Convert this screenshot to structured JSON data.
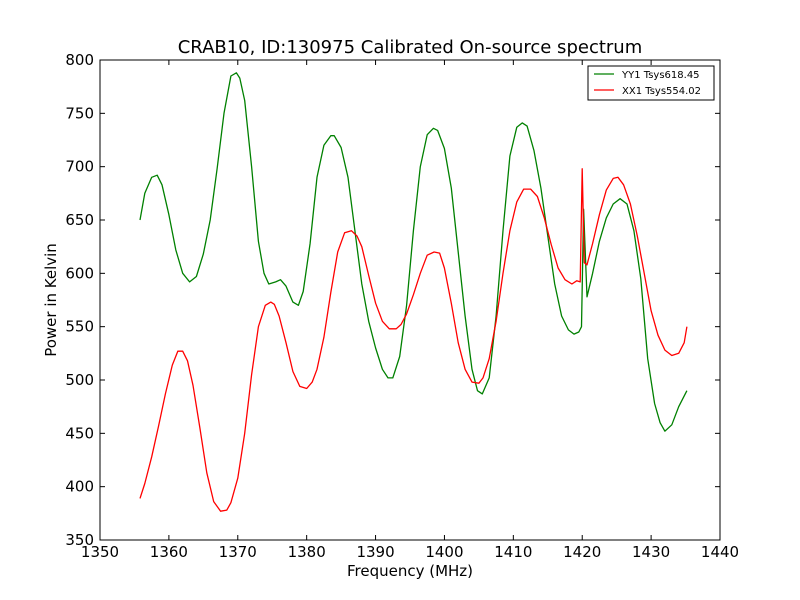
{
  "chart_data": {
    "type": "line",
    "title": "CRAB10, ID:130975 Calibrated On-source spectrum",
    "xlabel": "Frequency (MHz)",
    "ylabel": "Power in Kelvin",
    "xlim": [
      1350,
      1440
    ],
    "ylim": [
      350,
      800
    ],
    "xticks": [
      1350,
      1360,
      1370,
      1380,
      1390,
      1400,
      1410,
      1420,
      1430,
      1440
    ],
    "yticks": [
      350,
      400,
      450,
      500,
      550,
      600,
      650,
      700,
      750,
      800
    ],
    "grid": false,
    "legend_position": "top-right",
    "series": [
      {
        "name": "YY1 Tsys618.45",
        "color": "#008000",
        "x": [
          1355.8,
          1356.5,
          1357.5,
          1358.3,
          1359.0,
          1360.0,
          1361.0,
          1362.0,
          1363.0,
          1364.0,
          1365.0,
          1366.0,
          1367.0,
          1368.0,
          1369.0,
          1369.8,
          1370.3,
          1371.0,
          1372.0,
          1373.0,
          1373.8,
          1374.5,
          1375.5,
          1376.2,
          1377.0,
          1378.0,
          1378.8,
          1379.5,
          1380.5,
          1381.5,
          1382.5,
          1383.5,
          1384.0,
          1385.0,
          1386.0,
          1387.0,
          1388.0,
          1389.0,
          1390.0,
          1391.0,
          1391.8,
          1392.5,
          1393.5,
          1394.5,
          1395.5,
          1396.5,
          1397.5,
          1398.4,
          1399.0,
          1400.0,
          1401.0,
          1402.0,
          1403.0,
          1404.0,
          1404.8,
          1405.5,
          1406.5,
          1407.5,
          1408.5,
          1409.5,
          1410.5,
          1411.3,
          1412.0,
          1413.0,
          1414.0,
          1415.0,
          1416.0,
          1417.0,
          1418.0,
          1418.8,
          1419.5,
          1419.9,
          1420.2,
          1420.7,
          1421.5,
          1422.5,
          1423.5,
          1424.5,
          1425.5,
          1426.5,
          1427.5,
          1428.5,
          1429.5,
          1430.5,
          1431.3,
          1432.0,
          1433.0,
          1434.0,
          1435.2
        ],
        "values": [
          650,
          675,
          690,
          692,
          683,
          655,
          622,
          600,
          592,
          597,
          618,
          650,
          698,
          750,
          785,
          788,
          783,
          762,
          700,
          630,
          600,
          590,
          592,
          594,
          588,
          573,
          570,
          583,
          628,
          690,
          720,
          729,
          729,
          718,
          690,
          640,
          590,
          555,
          530,
          510,
          502,
          502,
          522,
          570,
          640,
          700,
          730,
          736,
          734,
          717,
          680,
          620,
          560,
          510,
          490,
          487,
          502,
          560,
          640,
          710,
          737,
          741,
          738,
          715,
          680,
          635,
          590,
          560,
          547,
          543,
          545,
          550,
          660,
          578,
          600,
          630,
          652,
          665,
          670,
          665,
          640,
          595,
          520,
          478,
          460,
          452,
          458,
          475,
          490
        ]
      },
      {
        "name": "XX1 Tsys554.02",
        "color": "#ff0000",
        "x": [
          1355.8,
          1356.5,
          1357.5,
          1358.5,
          1359.5,
          1360.5,
          1361.3,
          1362.0,
          1362.7,
          1363.5,
          1364.5,
          1365.5,
          1366.5,
          1367.5,
          1368.4,
          1369.0,
          1370.0,
          1371.0,
          1372.0,
          1373.0,
          1374.0,
          1374.8,
          1375.3,
          1376.0,
          1377.0,
          1378.0,
          1379.0,
          1380.0,
          1380.8,
          1381.5,
          1382.5,
          1383.5,
          1384.5,
          1385.5,
          1386.5,
          1387.3,
          1388.0,
          1389.0,
          1390.0,
          1391.0,
          1392.0,
          1393.0,
          1393.7,
          1394.5,
          1395.5,
          1396.5,
          1397.5,
          1398.5,
          1399.3,
          1400.0,
          1401.0,
          1402.0,
          1403.0,
          1404.0,
          1405.0,
          1405.6,
          1406.5,
          1407.5,
          1408.5,
          1409.5,
          1410.5,
          1411.5,
          1412.5,
          1413.5,
          1414.5,
          1415.5,
          1416.5,
          1417.5,
          1418.5,
          1419.2,
          1419.7,
          1420.0,
          1420.3,
          1420.7,
          1421.5,
          1422.5,
          1423.5,
          1424.5,
          1425.2,
          1426.0,
          1427.0,
          1428.0,
          1429.0,
          1430.0,
          1431.0,
          1432.0,
          1433.0,
          1434.0,
          1434.8,
          1435.2
        ],
        "values": [
          389,
          403,
          428,
          457,
          487,
          514,
          527,
          527,
          518,
          495,
          455,
          413,
          386,
          377,
          378,
          385,
          408,
          450,
          505,
          550,
          570,
          573,
          571,
          560,
          535,
          508,
          494,
          492,
          498,
          510,
          540,
          582,
          620,
          638,
          640,
          635,
          625,
          598,
          572,
          555,
          548,
          548,
          552,
          562,
          580,
          600,
          617,
          620,
          619,
          605,
          572,
          535,
          510,
          498,
          497,
          502,
          520,
          555,
          600,
          640,
          667,
          679,
          679,
          672,
          652,
          627,
          605,
          594,
          590,
          593,
          592,
          698,
          610,
          608,
          628,
          655,
          678,
          689,
          690,
          683,
          665,
          635,
          600,
          565,
          542,
          528,
          523,
          525,
          535,
          550
        ]
      }
    ]
  }
}
